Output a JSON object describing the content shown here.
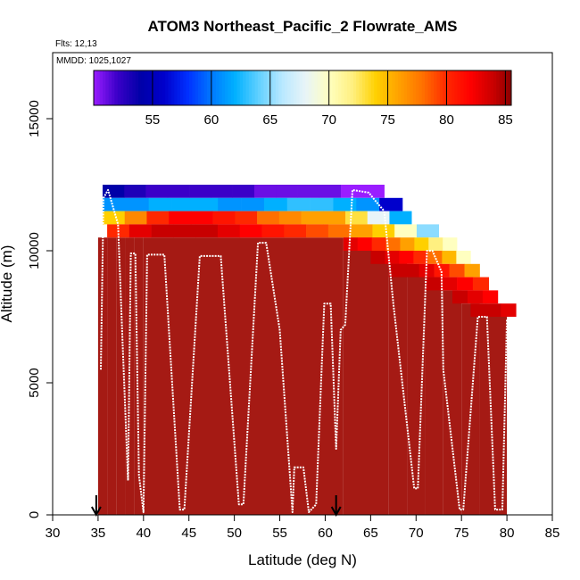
{
  "chart_data": {
    "type": "heatmap",
    "title": "ATOM3 Northeast_Pacific_2 Flowrate_AMS",
    "flights_label": "Flts: 12,13",
    "dates_label": "MMDD: 1025,1027",
    "xlabel": "Latitude (deg N)",
    "ylabel": "Altitude (m)",
    "xlim": [
      30,
      85
    ],
    "ylim": [
      0,
      17500
    ],
    "xticks": [
      30,
      35,
      40,
      45,
      50,
      55,
      60,
      65,
      70,
      75,
      80,
      85
    ],
    "yticks": [
      0,
      5000,
      10000,
      15000
    ],
    "colorbar": {
      "range": [
        50,
        85.5
      ],
      "ticks": [
        55,
        60,
        65,
        70,
        75,
        80,
        85
      ]
    },
    "arrows_latitude": [
      34.8,
      61.2
    ],
    "columns": [
      {
        "x0": 35.0,
        "x1": 36.0,
        "ztop": 10500,
        "fill": 85
      },
      {
        "x0": 36.0,
        "x1": 37.0,
        "ztop": 10500,
        "fill": 85
      },
      {
        "x0": 37.0,
        "x1": 38.0,
        "ztop": 10500,
        "fill": 85
      },
      {
        "x0": 38.0,
        "x1": 39.0,
        "ztop": 10500,
        "fill": 85
      },
      {
        "x0": 39.0,
        "x1": 40.0,
        "ztop": 10500,
        "fill": 85
      },
      {
        "x0": 40.0,
        "x1": 62.0,
        "ztop": 10500,
        "fill": 85
      },
      {
        "x0": 62.0,
        "x1": 67.0,
        "ztop": 10500,
        "fill": 85
      },
      {
        "x0": 67.0,
        "x1": 69.0,
        "ztop": 10000,
        "fill": 85
      },
      {
        "x0": 69.0,
        "x1": 71.0,
        "ztop": 9500,
        "fill": 85
      },
      {
        "x0": 71.0,
        "x1": 73.0,
        "ztop": 9000,
        "fill": 85
      },
      {
        "x0": 73.0,
        "x1": 75.0,
        "ztop": 8500,
        "fill": 85
      },
      {
        "x0": 75.0,
        "x1": 77.0,
        "ztop": 8000,
        "fill": 85
      },
      {
        "x0": 77.0,
        "x1": 80.0,
        "ztop": 7500,
        "fill": 85
      }
    ],
    "upper_layers": [
      {
        "x0": 35.5,
        "x1": 66.5,
        "y0": 12000,
        "y1": 12500,
        "values": [
          54,
          53,
          52,
          52,
          52,
          52,
          52,
          51,
          51,
          51,
          51,
          50,
          50
        ]
      },
      {
        "x0": 35.5,
        "x1": 68.5,
        "y0": 11500,
        "y1": 12000,
        "values": [
          61,
          61,
          62,
          62,
          62,
          61,
          61,
          62,
          63,
          63,
          62,
          61,
          56
        ]
      },
      {
        "x0": 35.5,
        "x1": 69.5,
        "y0": 11000,
        "y1": 11500,
        "values": [
          74,
          77,
          80,
          82,
          82,
          81,
          80,
          78,
          77,
          76,
          76,
          73,
          68,
          62
        ]
      },
      {
        "x0": 36.0,
        "x1": 72.5,
        "y0": 10500,
        "y1": 11000,
        "values": [
          80,
          83,
          84,
          84,
          84,
          83,
          82,
          81,
          80,
          79,
          78,
          76,
          74,
          70,
          65
        ]
      },
      {
        "x0": 62.0,
        "x1": 74.5,
        "y0": 10000,
        "y1": 10500,
        "values": [
          83,
          82,
          80,
          78,
          76,
          74,
          72,
          70
        ]
      },
      {
        "x0": 65.0,
        "x1": 76.0,
        "y0": 9500,
        "y1": 10000,
        "values": [
          84,
          83,
          82,
          80,
          78,
          75,
          70
        ]
      },
      {
        "x0": 67.0,
        "x1": 77.0,
        "y0": 9000,
        "y1": 9500,
        "values": [
          84,
          84,
          83,
          81,
          79,
          76
        ]
      },
      {
        "x0": 71.0,
        "x1": 78.0,
        "y0": 8500,
        "y1": 9000,
        "values": [
          84,
          83,
          82,
          80
        ]
      },
      {
        "x0": 74.0,
        "x1": 79.0,
        "y0": 8000,
        "y1": 8500,
        "values": [
          84,
          83,
          82
        ]
      },
      {
        "x0": 76.0,
        "x1": 81.0,
        "y0": 7500,
        "y1": 8000,
        "values": [
          84,
          84,
          83
        ]
      }
    ],
    "track": [
      [
        35.3,
        5500
      ],
      [
        35.6,
        12000
      ],
      [
        36.1,
        12300
      ],
      [
        37.2,
        11000
      ],
      [
        37.7,
        6500
      ],
      [
        38.3,
        1300
      ],
      [
        38.6,
        9900
      ],
      [
        39.1,
        9900
      ],
      [
        39.5,
        1500
      ],
      [
        40.0,
        100
      ],
      [
        40.4,
        9850
      ],
      [
        42.3,
        9850
      ],
      [
        44.0,
        200
      ],
      [
        44.5,
        200
      ],
      [
        46.2,
        9800
      ],
      [
        48.5,
        9800
      ],
      [
        50.5,
        400
      ],
      [
        51.0,
        400
      ],
      [
        52.6,
        10300
      ],
      [
        53.5,
        10300
      ],
      [
        55.0,
        7000
      ],
      [
        56.4,
        100
      ],
      [
        56.6,
        1800
      ],
      [
        57.6,
        1800
      ],
      [
        58.2,
        100
      ],
      [
        59.0,
        400
      ],
      [
        59.9,
        8000
      ],
      [
        60.6,
        8000
      ],
      [
        61.2,
        2500
      ],
      [
        61.7,
        7000
      ],
      [
        62.2,
        7200
      ],
      [
        63.0,
        12300
      ],
      [
        64.8,
        12200
      ],
      [
        65.5,
        11900
      ],
      [
        66.5,
        11500
      ],
      [
        67.5,
        8000
      ],
      [
        69.8,
        1000
      ],
      [
        70.2,
        1000
      ],
      [
        71.2,
        10000
      ],
      [
        71.8,
        10000
      ],
      [
        72.8,
        9200
      ],
      [
        73.0,
        5500
      ],
      [
        74.8,
        200
      ],
      [
        75.2,
        200
      ],
      [
        76.8,
        7500
      ],
      [
        77.8,
        7500
      ],
      [
        78.7,
        200
      ],
      [
        79.5,
        200
      ],
      [
        80.0,
        7400
      ]
    ]
  }
}
